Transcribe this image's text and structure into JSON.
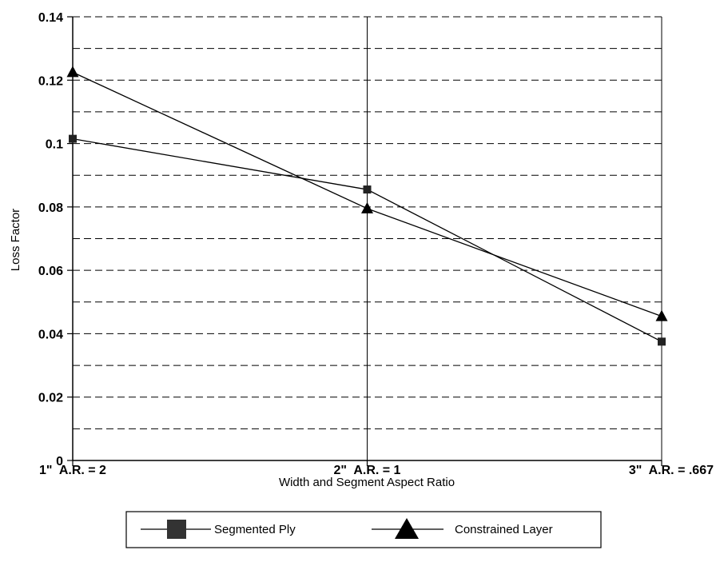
{
  "chart_data": {
    "type": "line",
    "title": "",
    "xlabel": "Width and Segment Aspect Ratio",
    "ylabel": "Loss Factor",
    "categories": [
      "1\"  A.R. = 2",
      "2\"  A.R. = 1",
      "3\"  A.R. = .667"
    ],
    "ylim": [
      0,
      0.14
    ],
    "yticks": [
      0,
      0.02,
      0.04,
      0.06,
      0.08,
      0.1,
      0.12,
      0.14
    ],
    "ytick_labels": [
      "0",
      "0.02",
      "0.04",
      "0.06",
      "0.08",
      "0.1",
      "0.12",
      "0.14"
    ],
    "minor_grid_step": 0.01,
    "grid": true,
    "legend_position": "bottom",
    "series": [
      {
        "name": "Segmented Ply",
        "marker": "square",
        "values": [
          0.1015,
          0.0855,
          0.0375
        ]
      },
      {
        "name": "Constrained Layer",
        "marker": "triangle",
        "values": [
          0.1225,
          0.0795,
          0.0455
        ]
      }
    ],
    "colors": {
      "line": "#000000",
      "grid": "#000000",
      "background": "#ffffff"
    }
  }
}
